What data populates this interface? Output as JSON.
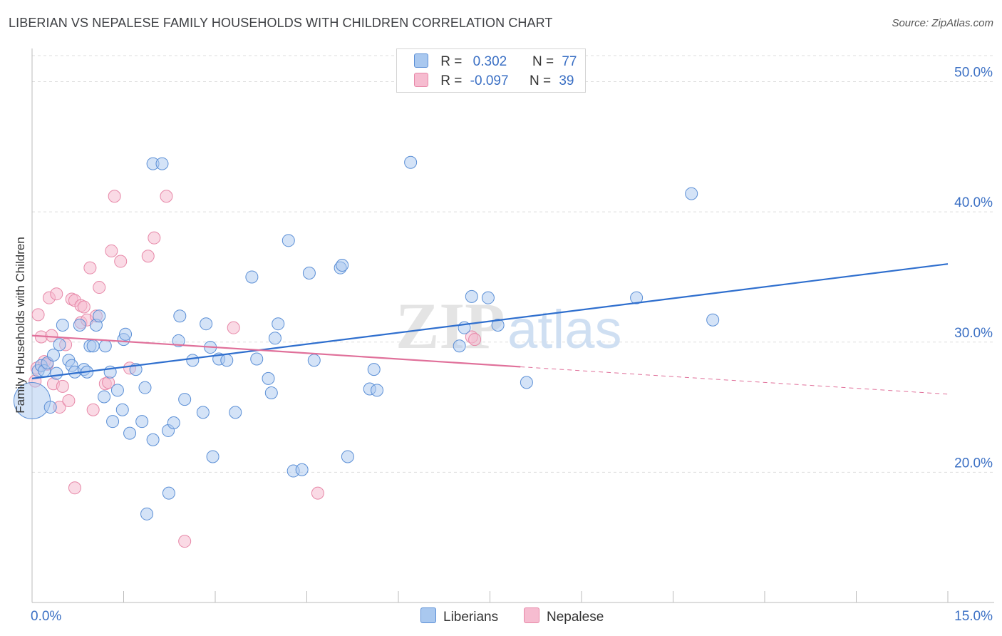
{
  "title": "LIBERIAN VS NEPALESE FAMILY HOUSEHOLDS WITH CHILDREN CORRELATION CHART",
  "source": "Source: ZipAtlas.com",
  "watermark": {
    "zip": "ZIP",
    "atlas": "atlas"
  },
  "legend": {
    "rows": [
      {
        "r_label": "R =",
        "r_value": "0.302",
        "n_label": "N =",
        "n_value": "77"
      },
      {
        "r_label": "R =",
        "r_value": "-0.097",
        "n_label": "N =",
        "n_value": "39"
      }
    ]
  },
  "bottom_legend": {
    "liberians": "Liberians",
    "nepalese": "Nepalese"
  },
  "colors": {
    "blue_fill": "#a9c8ef",
    "blue_stroke": "#5b8fd6",
    "blue_line": "#2f6fce",
    "pink_fill": "#f6bcd0",
    "pink_stroke": "#e788a8",
    "pink_line": "#e0709a",
    "axis_text": "#3a6fc4",
    "grid": "#dedede"
  },
  "chart_data": {
    "type": "scatter",
    "title": "LIBERIAN VS NEPALESE FAMILY HOUSEHOLDS WITH CHILDREN CORRELATION CHART",
    "xlabel": "",
    "ylabel": "Family Households with Children",
    "xlim": [
      0,
      15
    ],
    "ylim": [
      10,
      52
    ],
    "x_tick_labels": [
      "0.0%",
      "15.0%"
    ],
    "y_ticks": [
      20,
      30,
      40,
      50
    ],
    "y_tick_labels": [
      "20.0%",
      "30.0%",
      "40.0%",
      "50.0%"
    ],
    "grid": true,
    "series": [
      {
        "name": "Liberians",
        "r": 0.302,
        "n": 77,
        "trend": {
          "x": [
            0,
            15
          ],
          "y": [
            27.2,
            36.0
          ]
        },
        "points": [
          [
            0.0,
            25.5,
            3
          ],
          [
            0.1,
            27.8,
            1
          ],
          [
            0.15,
            28.2,
            1
          ],
          [
            0.2,
            27.8,
            1
          ],
          [
            0.25,
            28.4,
            1
          ],
          [
            0.3,
            25.0,
            1
          ],
          [
            0.35,
            29.0,
            1
          ],
          [
            0.4,
            27.6,
            1
          ],
          [
            0.45,
            29.8,
            1
          ],
          [
            0.5,
            31.3,
            1
          ],
          [
            0.6,
            28.6,
            1
          ],
          [
            0.65,
            28.2,
            1
          ],
          [
            0.7,
            27.7,
            1
          ],
          [
            0.78,
            31.3,
            1
          ],
          [
            0.85,
            27.9,
            1
          ],
          [
            0.9,
            27.7,
            1
          ],
          [
            0.95,
            29.7,
            1
          ],
          [
            1.0,
            29.7,
            1
          ],
          [
            1.05,
            31.3,
            1
          ],
          [
            1.1,
            32.0,
            1
          ],
          [
            1.18,
            25.8,
            1
          ],
          [
            1.2,
            29.7,
            1
          ],
          [
            1.28,
            27.7,
            1
          ],
          [
            1.32,
            23.9,
            1
          ],
          [
            1.4,
            26.3,
            1
          ],
          [
            1.48,
            24.8,
            1
          ],
          [
            1.5,
            30.2,
            1
          ],
          [
            1.53,
            30.6,
            1
          ],
          [
            1.6,
            23.0,
            1
          ],
          [
            1.7,
            27.9,
            1
          ],
          [
            1.8,
            23.9,
            1
          ],
          [
            1.85,
            26.5,
            1
          ],
          [
            1.88,
            16.8,
            1
          ],
          [
            1.98,
            22.5,
            1
          ],
          [
            1.98,
            43.7,
            1
          ],
          [
            2.13,
            43.7,
            1
          ],
          [
            2.23,
            23.2,
            1
          ],
          [
            2.24,
            18.4,
            1
          ],
          [
            2.32,
            23.8,
            1
          ],
          [
            2.4,
            30.1,
            1
          ],
          [
            2.42,
            32.0,
            1
          ],
          [
            2.5,
            25.6,
            1
          ],
          [
            2.63,
            28.6,
            1
          ],
          [
            2.8,
            24.6,
            1
          ],
          [
            2.85,
            31.4,
            1
          ],
          [
            2.92,
            29.6,
            1
          ],
          [
            2.96,
            21.2,
            1
          ],
          [
            3.06,
            28.7,
            1
          ],
          [
            3.19,
            28.6,
            1
          ],
          [
            3.33,
            24.6,
            1
          ],
          [
            3.6,
            35.0,
            1
          ],
          [
            3.68,
            28.7,
            1
          ],
          [
            3.87,
            27.2,
            1
          ],
          [
            3.92,
            26.1,
            1
          ],
          [
            3.98,
            30.3,
            1
          ],
          [
            4.03,
            31.4,
            1
          ],
          [
            4.2,
            37.8,
            1
          ],
          [
            4.28,
            20.1,
            1
          ],
          [
            4.42,
            20.2,
            1
          ],
          [
            4.54,
            35.3,
            1
          ],
          [
            4.62,
            28.6,
            1
          ],
          [
            5.05,
            35.7,
            1
          ],
          [
            5.08,
            35.9,
            1
          ],
          [
            5.17,
            21.2,
            1
          ],
          [
            5.53,
            26.4,
            1
          ],
          [
            5.6,
            27.9,
            1
          ],
          [
            5.65,
            26.3,
            1
          ],
          [
            6.2,
            43.8,
            1
          ],
          [
            7.0,
            29.7,
            1
          ],
          [
            7.08,
            31.1,
            1
          ],
          [
            7.2,
            33.5,
            1
          ],
          [
            7.47,
            33.4,
            1
          ],
          [
            7.63,
            31.3,
            1
          ],
          [
            8.1,
            26.9,
            1
          ],
          [
            9.9,
            33.4,
            1
          ],
          [
            10.8,
            41.4,
            1
          ],
          [
            11.15,
            31.7,
            1
          ]
        ]
      },
      {
        "name": "Nepalese",
        "r": -0.097,
        "n": 39,
        "trend": {
          "x": [
            0,
            8.0
          ],
          "y": [
            30.5,
            28.1
          ]
        },
        "trend_dashed": {
          "x": [
            8.0,
            15
          ],
          "y": [
            28.1,
            26.0
          ]
        },
        "points": [
          [
            0.05,
            27.0,
            1
          ],
          [
            0.08,
            28.0,
            1
          ],
          [
            0.1,
            32.1,
            1
          ],
          [
            0.15,
            30.4,
            1
          ],
          [
            0.2,
            28.5,
            1
          ],
          [
            0.25,
            28.3,
            1
          ],
          [
            0.28,
            33.4,
            1
          ],
          [
            0.32,
            30.5,
            1
          ],
          [
            0.35,
            26.8,
            1
          ],
          [
            0.4,
            33.7,
            1
          ],
          [
            0.45,
            25.0,
            1
          ],
          [
            0.5,
            26.6,
            1
          ],
          [
            0.55,
            29.8,
            1
          ],
          [
            0.6,
            25.5,
            1
          ],
          [
            0.65,
            33.3,
            1
          ],
          [
            0.7,
            33.2,
            1
          ],
          [
            0.7,
            18.8,
            1
          ],
          [
            0.8,
            31.5,
            1
          ],
          [
            0.8,
            32.8,
            1
          ],
          [
            0.85,
            32.7,
            1
          ],
          [
            0.9,
            31.7,
            1
          ],
          [
            0.95,
            35.7,
            1
          ],
          [
            1.0,
            24.8,
            1
          ],
          [
            1.05,
            32.0,
            1
          ],
          [
            1.1,
            34.2,
            1
          ],
          [
            1.2,
            26.8,
            1
          ],
          [
            1.25,
            26.9,
            1
          ],
          [
            1.3,
            37.0,
            1
          ],
          [
            1.35,
            41.2,
            1
          ],
          [
            1.45,
            36.2,
            1
          ],
          [
            1.6,
            28.0,
            1
          ],
          [
            1.9,
            36.6,
            1
          ],
          [
            2.0,
            38.0,
            1
          ],
          [
            2.2,
            41.2,
            1
          ],
          [
            2.5,
            14.7,
            1
          ],
          [
            3.3,
            31.1,
            1
          ],
          [
            4.68,
            18.4,
            1
          ],
          [
            7.2,
            30.4,
            1
          ],
          [
            7.25,
            30.2,
            1
          ]
        ]
      }
    ]
  }
}
